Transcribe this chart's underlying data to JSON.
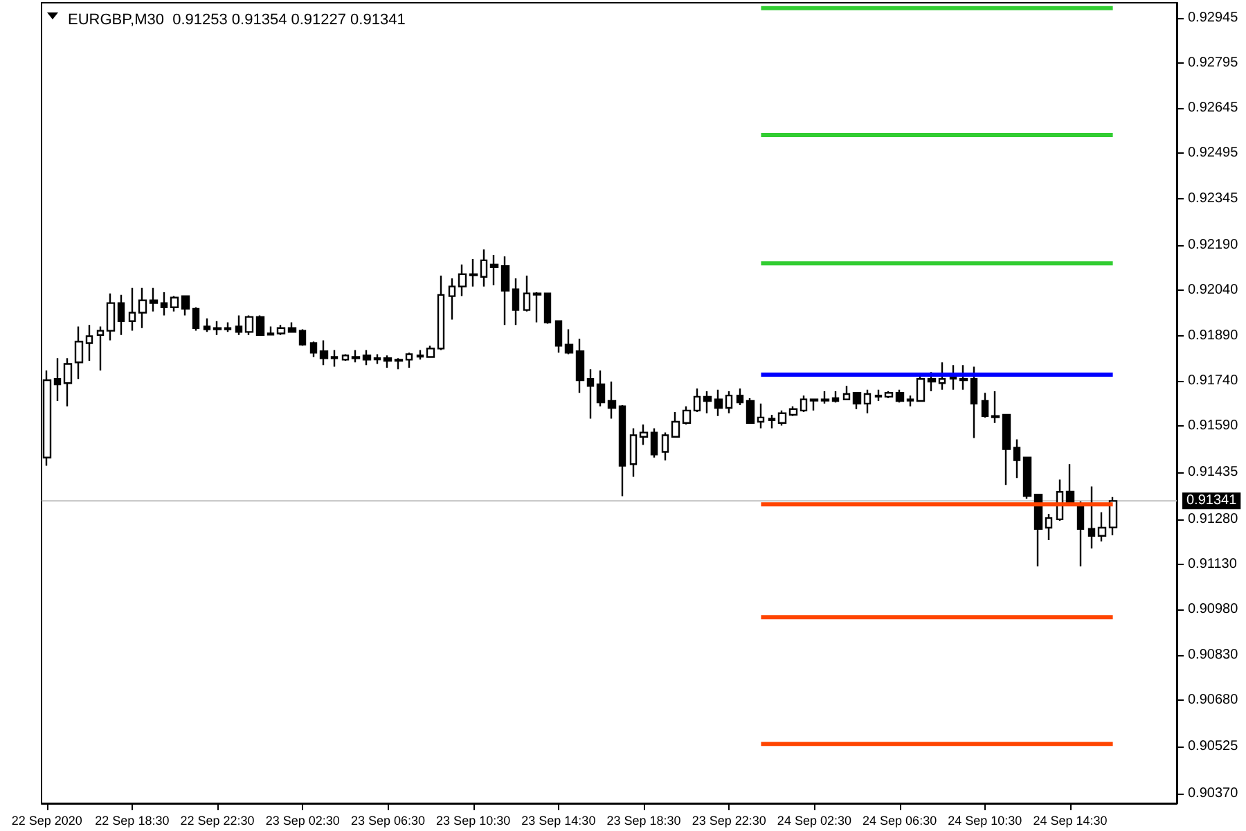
{
  "chart_data": {
    "type": "candlestick",
    "title": "EURGBP,M30  0.91253 0.91354 0.91227 0.91341",
    "x": [
      "2020-09-22T14:30",
      "2020-09-22T15:00",
      "2020-09-22T15:30",
      "2020-09-22T16:00",
      "2020-09-22T16:30",
      "2020-09-22T17:00",
      "2020-09-22T17:30",
      "2020-09-22T18:00",
      "2020-09-22T18:30",
      "2020-09-22T19:00",
      "2020-09-22T19:30",
      "2020-09-22T20:00",
      "2020-09-22T20:30",
      "2020-09-22T21:00",
      "2020-09-22T21:30",
      "2020-09-22T22:00",
      "2020-09-22T22:30",
      "2020-09-22T23:00",
      "2020-09-22T23:30",
      "2020-09-23T00:00",
      "2020-09-23T00:30",
      "2020-09-23T01:00",
      "2020-09-23T01:30",
      "2020-09-23T02:00",
      "2020-09-23T02:30",
      "2020-09-23T03:00",
      "2020-09-23T03:30",
      "2020-09-23T04:00",
      "2020-09-23T04:30",
      "2020-09-23T05:00",
      "2020-09-23T05:30",
      "2020-09-23T06:00",
      "2020-09-23T06:30",
      "2020-09-23T07:00",
      "2020-09-23T07:30",
      "2020-09-23T08:00",
      "2020-09-23T08:30",
      "2020-09-23T09:00",
      "2020-09-23T09:30",
      "2020-09-23T10:00",
      "2020-09-23T10:30",
      "2020-09-23T11:00",
      "2020-09-23T11:30",
      "2020-09-23T12:00",
      "2020-09-23T12:30",
      "2020-09-23T13:00",
      "2020-09-23T13:30",
      "2020-09-23T14:00",
      "2020-09-23T14:30",
      "2020-09-23T15:00",
      "2020-09-23T15:30",
      "2020-09-23T16:00",
      "2020-09-23T16:30",
      "2020-09-23T17:00",
      "2020-09-23T17:30",
      "2020-09-23T18:00",
      "2020-09-23T18:30",
      "2020-09-23T19:00",
      "2020-09-23T19:30",
      "2020-09-23T20:00",
      "2020-09-23T20:30",
      "2020-09-23T21:00",
      "2020-09-23T21:30",
      "2020-09-23T22:00",
      "2020-09-23T22:30",
      "2020-09-23T23:00",
      "2020-09-23T23:30",
      "2020-09-24T00:00",
      "2020-09-24T00:30",
      "2020-09-24T01:00",
      "2020-09-24T01:30",
      "2020-09-24T02:00",
      "2020-09-24T02:30",
      "2020-09-24T03:00",
      "2020-09-24T03:30",
      "2020-09-24T04:00",
      "2020-09-24T04:30",
      "2020-09-24T05:00",
      "2020-09-24T05:30",
      "2020-09-24T06:00",
      "2020-09-24T06:30",
      "2020-09-24T07:00",
      "2020-09-24T07:30",
      "2020-09-24T08:00",
      "2020-09-24T08:30",
      "2020-09-24T09:00",
      "2020-09-24T09:30",
      "2020-09-24T10:00",
      "2020-09-24T10:30",
      "2020-09-24T11:00",
      "2020-09-24T11:30",
      "2020-09-24T12:00",
      "2020-09-24T12:30",
      "2020-09-24T13:00",
      "2020-09-24T13:30",
      "2020-09-24T14:00",
      "2020-09-24T14:30",
      "2020-09-24T15:00",
      "2020-09-24T15:30",
      "2020-09-24T16:00",
      "2020-09-24T16:30"
    ],
    "ohlc": [
      [
        0.91485,
        0.91774,
        0.91458,
        0.91742
      ],
      [
        0.91746,
        0.91815,
        0.91673,
        0.91728
      ],
      [
        0.91732,
        0.91815,
        0.91655,
        0.91796
      ],
      [
        0.91801,
        0.9192,
        0.91746,
        0.9187
      ],
      [
        0.91865,
        0.91925,
        0.91806,
        0.91888
      ],
      [
        0.91892,
        0.9192,
        0.91774,
        0.91906
      ],
      [
        0.91906,
        0.9203,
        0.91874,
        0.91998
      ],
      [
        0.91998,
        0.92025,
        0.91892,
        0.91938
      ],
      [
        0.91938,
        0.92048,
        0.91906,
        0.91966
      ],
      [
        0.91966,
        0.92048,
        0.91915,
        0.92007
      ],
      [
        0.92007,
        0.92048,
        0.9197,
        0.91998
      ],
      [
        0.91998,
        0.92034,
        0.91957,
        0.91984
      ],
      [
        0.91984,
        0.92021,
        0.9197,
        0.92016
      ],
      [
        0.92021,
        0.92021,
        0.91957,
        0.91979
      ],
      [
        0.91979,
        0.91984,
        0.91906,
        0.91915
      ],
      [
        0.9192,
        0.91947,
        0.91902,
        0.91911
      ],
      [
        0.91915,
        0.91938,
        0.91892,
        0.91911
      ],
      [
        0.91915,
        0.91934,
        0.91902,
        0.91911
      ],
      [
        0.9192,
        0.91957,
        0.91892,
        0.91902
      ],
      [
        0.91902,
        0.91957,
        0.91892,
        0.91952
      ],
      [
        0.91952,
        0.91957,
        0.91892,
        0.91892
      ],
      [
        0.91897,
        0.9192,
        0.91892,
        0.91893
      ],
      [
        0.91897,
        0.91925,
        0.91892,
        0.91915
      ],
      [
        0.91915,
        0.91934,
        0.91902,
        0.91902
      ],
      [
        0.91906,
        0.91911,
        0.91856,
        0.9186
      ],
      [
        0.91865,
        0.9187,
        0.91819,
        0.91833
      ],
      [
        0.91838,
        0.91874,
        0.91792,
        0.91815
      ],
      [
        0.91815,
        0.91842,
        0.91787,
        0.91819
      ],
      [
        0.9181,
        0.91828,
        0.91806,
        0.91824
      ],
      [
        0.91819,
        0.91842,
        0.91801,
        0.91815
      ],
      [
        0.91824,
        0.91842,
        0.91792,
        0.9181
      ],
      [
        0.91815,
        0.91828,
        0.91796,
        0.91811
      ],
      [
        0.91815,
        0.91824,
        0.91783,
        0.91806
      ],
      [
        0.9181,
        0.91815,
        0.91778,
        0.91806
      ],
      [
        0.9181,
        0.91833,
        0.91783,
        0.91828
      ],
      [
        0.91824,
        0.91842,
        0.9181,
        0.9182
      ],
      [
        0.91819,
        0.91856,
        0.91819,
        0.91847
      ],
      [
        0.91847,
        0.92089,
        0.91842,
        0.92025
      ],
      [
        0.92021,
        0.9208,
        0.91943,
        0.92053
      ],
      [
        0.92053,
        0.92126,
        0.92021,
        0.92094
      ],
      [
        0.92094,
        0.92144,
        0.92053,
        0.9209
      ],
      [
        0.92085,
        0.92176,
        0.92053,
        0.9214
      ],
      [
        0.92126,
        0.92158,
        0.92057,
        0.92117
      ],
      [
        0.92121,
        0.92153,
        0.91925,
        0.92039
      ],
      [
        0.92044,
        0.9208,
        0.91925,
        0.91975
      ],
      [
        0.91975,
        0.92089,
        0.9197,
        0.9203
      ],
      [
        0.9203,
        0.92034,
        0.91934,
        0.92026
      ],
      [
        0.9203,
        0.9203,
        0.91929,
        0.91934
      ],
      [
        0.91938,
        0.91938,
        0.91833,
        0.91856
      ],
      [
        0.9186,
        0.91911,
        0.91828,
        0.91833
      ],
      [
        0.91838,
        0.91879,
        0.917,
        0.91742
      ],
      [
        0.91746,
        0.91778,
        0.91614,
        0.91723
      ],
      [
        0.91728,
        0.91774,
        0.91655,
        0.91668
      ],
      [
        0.91673,
        0.91737,
        0.91614,
        0.9165
      ],
      [
        0.91655,
        0.91659,
        0.91357,
        0.91458
      ],
      [
        0.91463,
        0.91582,
        0.91421,
        0.91559
      ],
      [
        0.91554,
        0.91595,
        0.91527,
        0.91568
      ],
      [
        0.91568,
        0.91582,
        0.91485,
        0.91495
      ],
      [
        0.91504,
        0.91568,
        0.91476,
        0.91559
      ],
      [
        0.91554,
        0.91636,
        0.91554,
        0.91604
      ],
      [
        0.916,
        0.91655,
        0.91595,
        0.91641
      ],
      [
        0.91641,
        0.91714,
        0.91636,
        0.91687
      ],
      [
        0.91687,
        0.91705,
        0.91632,
        0.91673
      ],
      [
        0.91678,
        0.9171,
        0.91623,
        0.9165
      ],
      [
        0.9165,
        0.91705,
        0.91632,
        0.91691
      ],
      [
        0.91691,
        0.91714,
        0.91659,
        0.91668
      ],
      [
        0.91673,
        0.91682,
        0.916,
        0.916
      ],
      [
        0.91604,
        0.91664,
        0.91582,
        0.91618
      ],
      [
        0.91609,
        0.91627,
        0.91582,
        0.91614
      ],
      [
        0.916,
        0.91641,
        0.91591,
        0.91632
      ],
      [
        0.91627,
        0.91655,
        0.91623,
        0.91646
      ],
      [
        0.91641,
        0.91691,
        0.91636,
        0.91678
      ],
      [
        0.91678,
        0.91678,
        0.91641,
        0.91674
      ],
      [
        0.91678,
        0.91705,
        0.91664,
        0.91674
      ],
      [
        0.91682,
        0.91705,
        0.91668,
        0.91673
      ],
      [
        0.91678,
        0.91723,
        0.91678,
        0.91696
      ],
      [
        0.917,
        0.917,
        0.91646,
        0.91664
      ],
      [
        0.91664,
        0.9171,
        0.91632,
        0.91696
      ],
      [
        0.91691,
        0.9171,
        0.91673,
        0.91687
      ],
      [
        0.91687,
        0.91705,
        0.91682,
        0.917
      ],
      [
        0.917,
        0.9171,
        0.91668,
        0.91673
      ],
      [
        0.91678,
        0.91691,
        0.91655,
        0.91674
      ],
      [
        0.91673,
        0.91755,
        0.91673,
        0.91746
      ],
      [
        0.91746,
        0.91769,
        0.91705,
        0.91737
      ],
      [
        0.91732,
        0.91801,
        0.9171,
        0.91746
      ],
      [
        0.91751,
        0.91792,
        0.9171,
        0.91747
      ],
      [
        0.91746,
        0.91792,
        0.9171,
        0.91742
      ],
      [
        0.91746,
        0.91787,
        0.9155,
        0.91664
      ],
      [
        0.91673,
        0.917,
        0.91618,
        0.91623
      ],
      [
        0.91623,
        0.91705,
        0.916,
        0.91619
      ],
      [
        0.91627,
        0.91627,
        0.91394,
        0.91513
      ],
      [
        0.91518,
        0.91545,
        0.91417,
        0.91476
      ],
      [
        0.91485,
        0.91485,
        0.91348,
        0.91357
      ],
      [
        0.91362,
        0.91362,
        0.91124,
        0.91248
      ],
      [
        0.91252,
        0.91298,
        0.91211,
        0.91284
      ],
      [
        0.9128,
        0.91412,
        0.91275,
        0.91371
      ],
      [
        0.91372,
        0.91463,
        0.91326,
        0.91326
      ],
      [
        0.9133,
        0.91339,
        0.91124,
        0.91248
      ],
      [
        0.91248,
        0.91389,
        0.91183,
        0.91225
      ],
      [
        0.91225,
        0.91303,
        0.91207,
        0.91252
      ],
      [
        0.91253,
        0.91354,
        0.91227,
        0.91341
      ]
    ],
    "series": [
      {
        "type": "line",
        "color": "#32cd32",
        "x": [
          "2020-09-24T00:00",
          "2020-09-24T16:30"
        ],
        "values": [
          0.92977,
          0.92977
        ]
      },
      {
        "type": "line",
        "color": "#32cd32",
        "x": [
          "2020-09-24T00:00",
          "2020-09-24T16:30"
        ],
        "values": [
          0.92556,
          0.92556
        ]
      },
      {
        "type": "line",
        "color": "#32cd32",
        "x": [
          "2020-09-24T00:00",
          "2020-09-24T16:30"
        ],
        "values": [
          0.9213,
          0.9213
        ]
      },
      {
        "type": "line",
        "color": "#0000ff",
        "x": [
          "2020-09-24T00:00",
          "2020-09-24T16:30"
        ],
        "values": [
          0.9176,
          0.9176
        ]
      },
      {
        "type": "line",
        "color": "#ff4500",
        "x": [
          "2020-09-24T00:00",
          "2020-09-24T16:30"
        ],
        "values": [
          0.9133,
          0.9133
        ]
      },
      {
        "type": "line",
        "color": "#ff4500",
        "x": [
          "2020-09-24T00:00",
          "2020-09-24T16:30"
        ],
        "values": [
          0.90955,
          0.90955
        ]
      },
      {
        "type": "line",
        "color": "#ff4500",
        "x": [
          "2020-09-24T00:00",
          "2020-09-24T16:30"
        ],
        "values": [
          0.90534,
          0.90534
        ]
      }
    ],
    "ref_lines": [
      {
        "axis": "y",
        "value": 0.91341,
        "label": "0.91341",
        "color": "#c0c0c0"
      }
    ],
    "xlim": [
      "2020-09-22T14:15",
      "2020-09-24T19:30"
    ],
    "xticks": [
      {
        "value": "2020-09-22T14:30",
        "label": "22 Sep 2020"
      },
      {
        "value": "2020-09-22T18:30",
        "label": "22 Sep 18:30"
      },
      {
        "value": "2020-09-22T22:30",
        "label": "22 Sep 22:30"
      },
      {
        "value": "2020-09-23T02:30",
        "label": "23 Sep 02:30"
      },
      {
        "value": "2020-09-23T06:30",
        "label": "23 Sep 06:30"
      },
      {
        "value": "2020-09-23T10:30",
        "label": "23 Sep 10:30"
      },
      {
        "value": "2020-09-23T14:30",
        "label": "23 Sep 14:30"
      },
      {
        "value": "2020-09-23T18:30",
        "label": "23 Sep 18:30"
      },
      {
        "value": "2020-09-23T22:30",
        "label": "23 Sep 22:30"
      },
      {
        "value": "2020-09-24T02:30",
        "label": "24 Sep 02:30"
      },
      {
        "value": "2020-09-24T06:30",
        "label": "24 Sep 06:30"
      },
      {
        "value": "2020-09-24T10:30",
        "label": "24 Sep 10:30"
      },
      {
        "value": "2020-09-24T14:30",
        "label": "24 Sep 14:30"
      }
    ],
    "ylim": [
      0.90337,
      0.92995
    ],
    "yticks": [
      {
        "value": 0.92945,
        "label": "0.92945"
      },
      {
        "value": 0.92795,
        "label": "0.92795"
      },
      {
        "value": 0.92645,
        "label": "0.92645"
      },
      {
        "value": 0.92495,
        "label": "0.92495"
      },
      {
        "value": 0.92345,
        "label": "0.92345"
      },
      {
        "value": 0.9219,
        "label": "0.92190"
      },
      {
        "value": 0.9204,
        "label": "0.92040"
      },
      {
        "value": 0.9189,
        "label": "0.91890"
      },
      {
        "value": 0.9174,
        "label": "0.91740"
      },
      {
        "value": 0.9159,
        "label": "0.91590"
      },
      {
        "value": 0.91435,
        "label": "0.91435"
      },
      {
        "value": 0.9128,
        "label": "0.91280"
      },
      {
        "value": 0.9113,
        "label": "0.91130"
      },
      {
        "value": 0.9098,
        "label": "0.90980"
      },
      {
        "value": 0.9083,
        "label": "0.90830"
      },
      {
        "value": 0.9068,
        "label": "0.90680"
      },
      {
        "value": 0.90525,
        "label": "0.90525"
      },
      {
        "value": 0.9037,
        "label": "0.90370"
      }
    ],
    "grid": false
  }
}
